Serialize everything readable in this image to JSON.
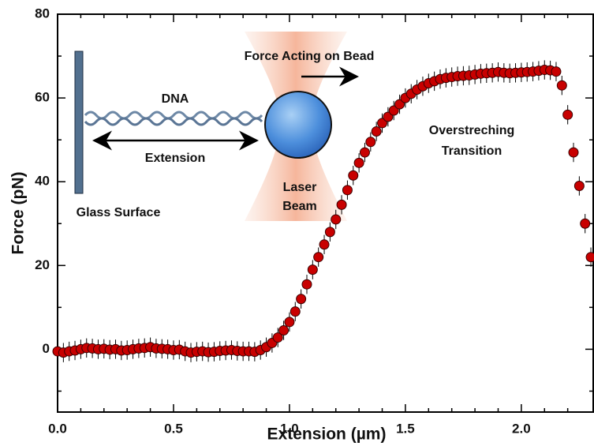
{
  "chart_data": {
    "type": "scatter",
    "xlabel": "Extension (µm)",
    "ylabel": "Force (pN)",
    "xlim": [
      0,
      2.31
    ],
    "ylim": [
      -15,
      80
    ],
    "xticks": [
      {
        "value": 0,
        "label": "0.0"
      },
      0.5,
      {
        "value": 1,
        "label": "1.0"
      },
      1.5,
      {
        "value": 2,
        "label": "2.0"
      }
    ],
    "xminorticks": [
      0.1,
      0.2,
      0.3,
      0.4,
      0.6,
      0.7,
      0.8,
      0.9,
      1.1,
      1.2,
      1.3,
      1.4,
      1.6,
      1.7,
      1.8,
      1.9,
      2.1,
      2.2
    ],
    "yticks": [
      0,
      20,
      40,
      60,
      80
    ],
    "yminorticks": [
      -10,
      10,
      30,
      50,
      70
    ],
    "yerr": 2.3,
    "series": [
      {
        "color": "#c80000",
        "x": [
          0,
          0.025,
          0.05,
          0.075,
          0.1,
          0.125,
          0.15,
          0.175,
          0.2,
          0.225,
          0.25,
          0.275,
          0.3,
          0.325,
          0.35,
          0.375,
          0.4,
          0.425,
          0.45,
          0.475,
          0.5,
          0.525,
          0.55,
          0.575,
          0.6,
          0.625,
          0.65,
          0.675,
          0.7,
          0.725,
          0.75,
          0.775,
          0.8,
          0.825,
          0.85,
          0.875,
          0.9,
          0.925,
          0.95,
          0.975,
          1,
          1.025,
          1.05,
          1.075,
          1.1,
          1.125,
          1.15,
          1.175,
          1.2,
          1.225,
          1.25,
          1.275,
          1.3,
          1.325,
          1.35,
          1.375,
          1.4,
          1.425,
          1.45,
          1.475,
          1.5,
          1.525,
          1.55,
          1.575,
          1.6,
          1.625,
          1.65,
          1.675,
          1.7,
          1.725,
          1.75,
          1.775,
          1.8,
          1.825,
          1.85,
          1.875,
          1.9,
          1.925,
          1.95,
          1.975,
          2,
          2.025,
          2.05,
          2.075,
          2.1,
          2.125,
          2.15,
          2.175,
          2.2,
          2.225,
          2.25,
          2.275,
          2.3
        ],
        "y": [
          -0.5,
          -0.8,
          -0.5,
          -0.3,
          0,
          0.3,
          0.2,
          0,
          0.1,
          -0.1,
          0,
          -0.3,
          -0.2,
          0,
          0.2,
          0.3,
          0.5,
          0.2,
          0.1,
          0,
          -0.2,
          -0.1,
          -0.5,
          -0.8,
          -0.6,
          -0.5,
          -0.7,
          -0.6,
          -0.4,
          -0.3,
          -0.2,
          -0.4,
          -0.5,
          -0.5,
          -0.6,
          -0.2,
          0.5,
          1.5,
          2.8,
          4.5,
          6.5,
          9,
          12,
          15.5,
          19,
          22,
          25,
          28,
          31,
          34.5,
          38,
          41.5,
          44.5,
          47,
          49.5,
          52,
          54,
          55.5,
          57,
          58.5,
          60,
          61,
          62,
          62.8,
          63.5,
          64,
          64.5,
          64.8,
          65,
          65.2,
          65.3,
          65.4,
          65.6,
          65.8,
          65.9,
          66,
          66.2,
          66,
          65.9,
          66,
          66.1,
          66.2,
          66.3,
          66.5,
          66.7,
          66.6,
          66.3,
          63,
          56,
          47,
          39,
          30,
          22
        ]
      }
    ],
    "annotations": {
      "dna": "DNA",
      "extension": "Extension",
      "glass_surface": "Glass Surface",
      "force": "Force Acting on Bead",
      "laser_beam": [
        "Laser",
        "Beam"
      ],
      "overstretching": [
        "Overstreching",
        "Transition"
      ]
    }
  }
}
